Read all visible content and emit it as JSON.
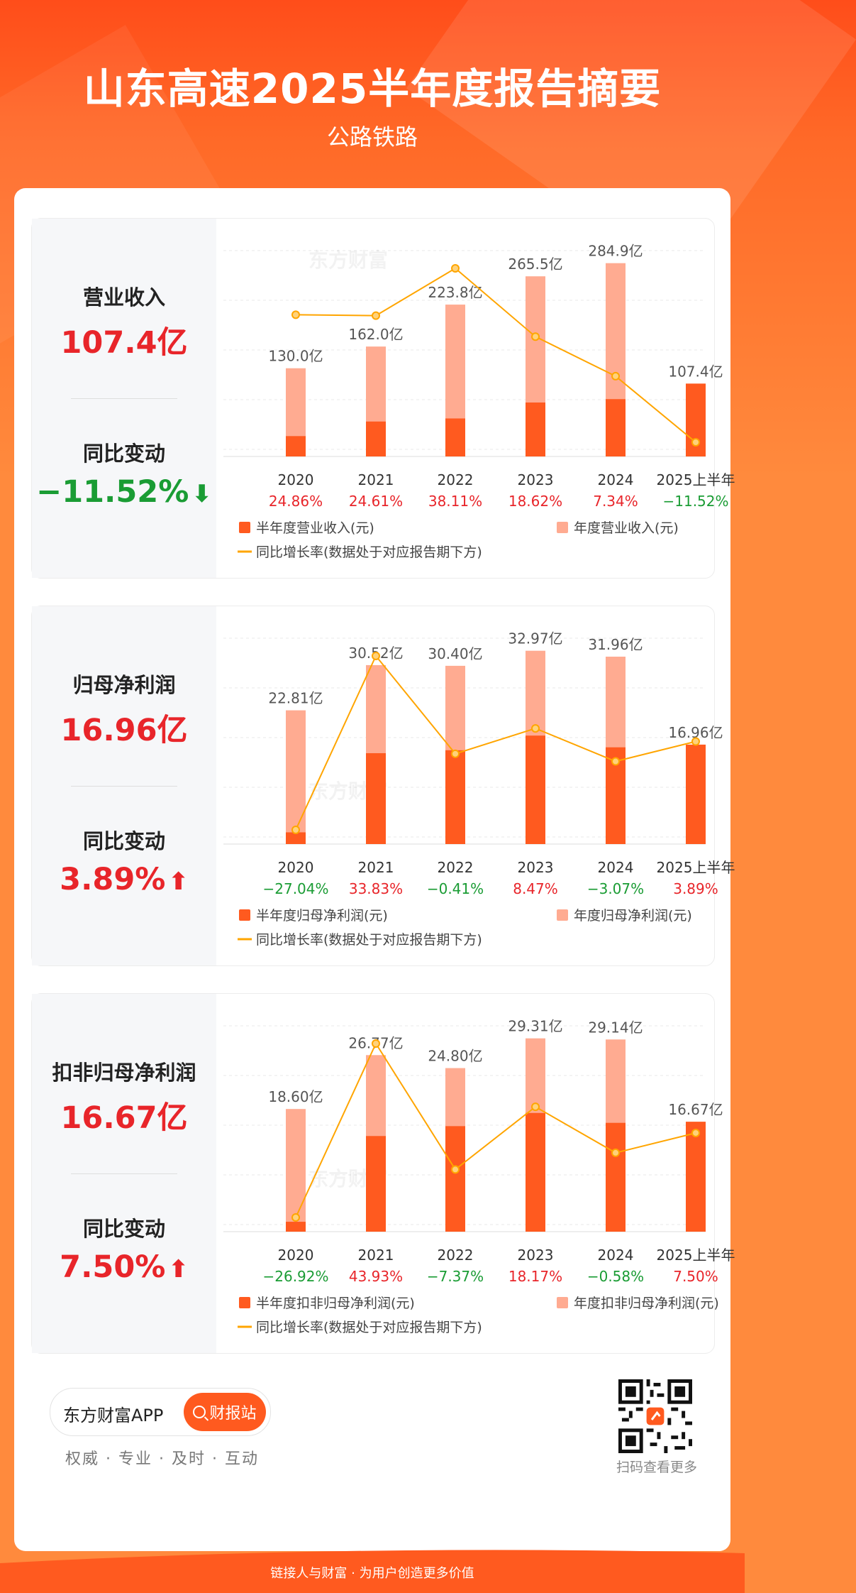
{
  "header": {
    "title": "山东高速2025半年度报告摘要",
    "subtitle": "公路铁路"
  },
  "watermark": "东方财富",
  "panels": [
    {
      "metric_label": "营业收入",
      "metric_value": "107.4亿",
      "change_label": "同比变动",
      "change_value": "−11.52%",
      "change_direction": "down",
      "legend": {
        "half": "半年度营业收入(元)",
        "annual": "年度营业收入(元)",
        "line": "同比增长率(数据处于对应报告期下方)"
      }
    },
    {
      "metric_label": "归母净利润",
      "metric_value": "16.96亿",
      "change_label": "同比变动",
      "change_value": "3.89%",
      "change_direction": "up",
      "legend": {
        "half": "半年度归母净利润(元)",
        "annual": "年度归母净利润(元)",
        "line": "同比增长率(数据处于对应报告期下方)"
      }
    },
    {
      "metric_label": "扣非归母净利润",
      "metric_value": "16.67亿",
      "change_label": "同比变动",
      "change_value": "7.50%",
      "change_direction": "up",
      "legend": {
        "half": "半年度扣非归母净利润(元)",
        "annual": "年度扣非归母净利润(元)",
        "line": "同比增长率(数据处于对应报告期下方)"
      }
    }
  ],
  "chart_data": [
    {
      "type": "bar",
      "categories": [
        "2020",
        "2021",
        "2022",
        "2023",
        "2024",
        "2025上半年"
      ],
      "series": [
        {
          "name": "半年度营业收入(元)",
          "values": [
            30.0,
            51.5,
            56.0,
            79.5,
            84.5,
            107.4
          ]
        },
        {
          "name": "年度营业收入(元)",
          "values": [
            130.0,
            162.0,
            223.8,
            265.5,
            284.9,
            null
          ]
        },
        {
          "name": "同比增长率(数据处于对应报告期下方)",
          "values": [
            24.86,
            24.61,
            38.11,
            18.62,
            7.34,
            -11.52
          ]
        }
      ],
      "bar_labels": [
        "130.0亿",
        "162.0亿",
        "223.8亿",
        "265.5亿",
        "284.9亿",
        "107.4亿"
      ],
      "growth_labels": [
        "24.86%",
        "24.61%",
        "38.11%",
        "18.62%",
        "7.34%",
        "−11.52%"
      ]
    },
    {
      "type": "bar",
      "categories": [
        "2020",
        "2021",
        "2022",
        "2023",
        "2024",
        "2025上半年"
      ],
      "series": [
        {
          "name": "半年度归母净利润(元)",
          "values": [
            2.0,
            15.5,
            16.0,
            18.5,
            16.5,
            16.96
          ]
        },
        {
          "name": "年度归母净利润(元)",
          "values": [
            22.81,
            30.52,
            30.4,
            32.97,
            31.96,
            null
          ]
        },
        {
          "name": "同比增长率(数据处于对应报告期下方)",
          "values": [
            -27.04,
            33.83,
            -0.41,
            8.47,
            -3.07,
            3.89
          ]
        }
      ],
      "bar_labels": [
        "22.81亿",
        "30.52亿",
        "30.40亿",
        "32.97亿",
        "31.96亿",
        "16.96亿"
      ],
      "growth_labels": [
        "−27.04%",
        "33.83%",
        "−0.41%",
        "8.47%",
        "−3.07%",
        "3.89%"
      ]
    },
    {
      "type": "bar",
      "categories": [
        "2020",
        "2021",
        "2022",
        "2023",
        "2024",
        "2025上半年"
      ],
      "series": [
        {
          "name": "半年度扣非归母净利润(元)",
          "values": [
            1.5,
            14.5,
            16.0,
            18.0,
            16.5,
            16.67
          ]
        },
        {
          "name": "年度扣非归母净利润(元)",
          "values": [
            18.6,
            26.77,
            24.8,
            29.31,
            29.14,
            null
          ]
        },
        {
          "name": "同比增长率(数据处于对应报告期下方)",
          "values": [
            -26.92,
            43.93,
            -7.37,
            18.17,
            -0.58,
            7.5
          ]
        }
      ],
      "bar_labels": [
        "18.60亿",
        "26.77亿",
        "24.80亿",
        "29.31亿",
        "29.14亿",
        "16.67亿"
      ],
      "growth_labels": [
        "−26.92%",
        "43.93%",
        "−7.37%",
        "18.17%",
        "−0.58%",
        "7.50%"
      ]
    }
  ],
  "colors": {
    "half_bar": "#ff5a1f",
    "annual_bar": "#ffab91",
    "line": "#ffa500",
    "up": "#e8252a",
    "down": "#1a9c34"
  },
  "footer": {
    "app_name": "东方财富APP",
    "button": "财报站",
    "slogan": "权威 · 专业 · 及时 · 互动",
    "qr_caption": "扫码查看更多",
    "bottom": "链接人与财富 · 为用户创造更多价值"
  }
}
